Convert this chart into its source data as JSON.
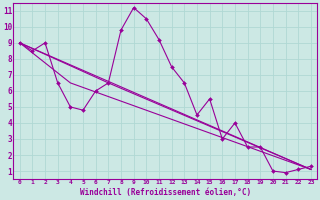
{
  "xlabel": "Windchill (Refroidissement éolien,°C)",
  "bg_color": "#cce8e4",
  "line_color": "#990099",
  "grid_color": "#b0d8d4",
  "x_ticks": [
    0,
    1,
    2,
    3,
    4,
    5,
    6,
    7,
    8,
    9,
    10,
    11,
    12,
    13,
    14,
    15,
    16,
    17,
    18,
    19,
    20,
    21,
    22,
    23
  ],
  "y_ticks": [
    1,
    2,
    3,
    4,
    5,
    6,
    7,
    8,
    9,
    10,
    11
  ],
  "xlim": [
    -0.5,
    23.5
  ],
  "ylim": [
    0.5,
    11.5
  ],
  "lines": [
    {
      "x": [
        0,
        1,
        2,
        3,
        4,
        5,
        6,
        7,
        8,
        9,
        10,
        11,
        12,
        13,
        14,
        15,
        16,
        17,
        18,
        19,
        20,
        21,
        22,
        23
      ],
      "y": [
        9,
        8.5,
        9,
        6.5,
        5,
        4.8,
        6,
        6.5,
        9.8,
        11.2,
        10.5,
        9.2,
        7.5,
        6.5,
        4.5,
        5.5,
        3.0,
        4.0,
        2.5,
        2.5,
        1.0,
        0.9,
        1.1,
        1.3
      ],
      "marker": true
    },
    {
      "x": [
        0,
        23
      ],
      "y": [
        9,
        1.1
      ],
      "marker": false
    },
    {
      "x": [
        0,
        7,
        23
      ],
      "y": [
        9,
        6.5,
        1.1
      ],
      "marker": false
    },
    {
      "x": [
        0,
        4,
        23
      ],
      "y": [
        9,
        6.5,
        1.1
      ],
      "marker": false
    }
  ]
}
